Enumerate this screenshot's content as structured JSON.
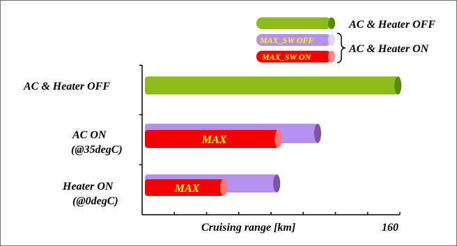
{
  "chart_data": {
    "type": "bar",
    "orientation": "horizontal",
    "xlabel": "Cruising range [km]",
    "xtick_labels": [
      "160"
    ],
    "xlim": [
      0,
      200
    ],
    "tick_count": 8,
    "categories": [
      {
        "line1": "AC & Heater OFF",
        "line2": ""
      },
      {
        "line1": "AC  ON",
        "line2": "(@35degC)"
      },
      {
        "line1": "Heater  ON",
        "line2": "(@0degC)"
      }
    ],
    "series": [
      {
        "key": "off",
        "color": "#8cbd1a",
        "cap": "#5a8a0a",
        "values": [
          167,
          null,
          null
        ]
      },
      {
        "key": "sw_off",
        "color": "#b590ee",
        "cap": "#7d55a8",
        "values": [
          null,
          114,
          87
        ]
      },
      {
        "key": "sw_on",
        "color": "#f20000",
        "cap": "#ff7777",
        "values": [
          null,
          88,
          52
        ]
      }
    ],
    "bar_labels": [
      "MAX",
      "MAX"
    ],
    "legend": {
      "position": "top-right",
      "entries": [
        {
          "label": "AC & Heater OFF",
          "color": "#8cbd1a",
          "cap": "#5a8a0a",
          "inner": ""
        },
        {
          "label": "",
          "color": "#b590ee",
          "cap": "#e3d6f7",
          "inner": "MAX_SW OFF"
        },
        {
          "label": "",
          "color": "#f20000",
          "cap": "#ff8a8a",
          "inner": "MAX_SW ON"
        }
      ],
      "group_label": "AC & Heater ON"
    }
  }
}
